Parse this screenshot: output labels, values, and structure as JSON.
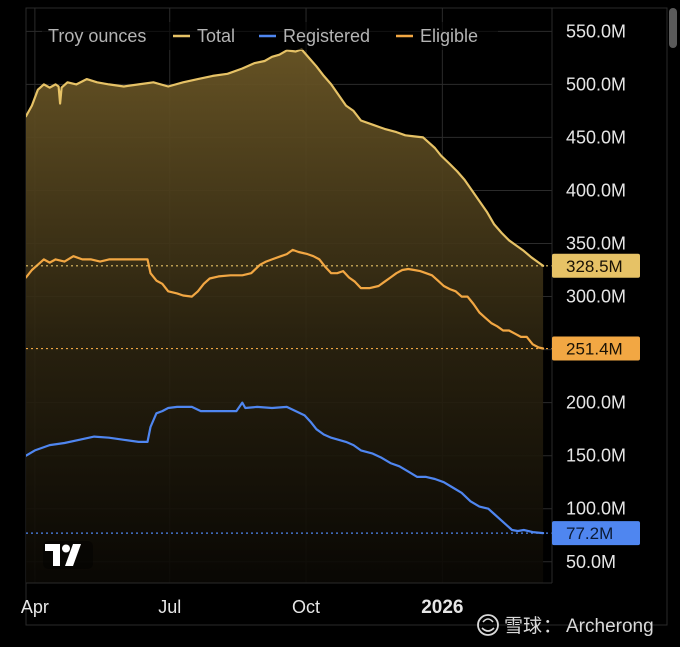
{
  "chart_data": {
    "type": "line",
    "ylabel": "Troy ounces",
    "y_axis_side": "right",
    "y_ticks": [
      50,
      100,
      150,
      200,
      250,
      300,
      350,
      400,
      450,
      500,
      550
    ],
    "y_tick_labels": [
      "50.0M",
      "100.0M",
      "150.0M",
      "200.0M",
      "250.0M",
      "300.0M",
      "350.0M",
      "400.0M",
      "450.0M",
      "500.0M",
      "550.0M"
    ],
    "ylim": [
      30,
      572
    ],
    "x_tick_labels": [
      "Apr",
      "Jul",
      "Oct",
      "2026"
    ],
    "x_tick_bold": [
      false,
      false,
      false,
      true
    ],
    "x_tick_days": [
      0,
      91,
      183,
      275
    ],
    "xlim_days": [
      -6,
      349
    ],
    "grid": true,
    "legend_placement": "top-left",
    "series": [
      {
        "name": "Total",
        "color": "#e6c266",
        "last_label": "328.5M",
        "badge_color": "#e6c266",
        "area": true,
        "points": [
          [
            -6,
            470
          ],
          [
            -2,
            480
          ],
          [
            2,
            495
          ],
          [
            6,
            500
          ],
          [
            10,
            497
          ],
          [
            14,
            500
          ],
          [
            16,
            498
          ],
          [
            17,
            482
          ],
          [
            18,
            497
          ],
          [
            22,
            502
          ],
          [
            28,
            500
          ],
          [
            35,
            505
          ],
          [
            42,
            502
          ],
          [
            50,
            500
          ],
          [
            60,
            498
          ],
          [
            70,
            500
          ],
          [
            80,
            502
          ],
          [
            90,
            498
          ],
          [
            100,
            502
          ],
          [
            110,
            505
          ],
          [
            120,
            508
          ],
          [
            130,
            510
          ],
          [
            140,
            515
          ],
          [
            148,
            520
          ],
          [
            155,
            522
          ],
          [
            160,
            526
          ],
          [
            165,
            528
          ],
          [
            170,
            532
          ],
          [
            176,
            531
          ],
          [
            180,
            533
          ],
          [
            185,
            525
          ],
          [
            190,
            517
          ],
          [
            195,
            508
          ],
          [
            200,
            500
          ],
          [
            205,
            490
          ],
          [
            210,
            480
          ],
          [
            215,
            475
          ],
          [
            220,
            466
          ],
          [
            228,
            462
          ],
          [
            236,
            458
          ],
          [
            244,
            455
          ],
          [
            250,
            452
          ],
          [
            256,
            451
          ],
          [
            262,
            450
          ],
          [
            266,
            445
          ],
          [
            270,
            440
          ],
          [
            274,
            433
          ],
          [
            280,
            425
          ],
          [
            285,
            418
          ],
          [
            290,
            410
          ],
          [
            295,
            400
          ],
          [
            300,
            390
          ],
          [
            305,
            380
          ],
          [
            310,
            368
          ],
          [
            315,
            360
          ],
          [
            320,
            353
          ],
          [
            325,
            348
          ],
          [
            330,
            343
          ],
          [
            335,
            337
          ],
          [
            340,
            332
          ],
          [
            343,
            329
          ]
        ]
      },
      {
        "name": "Registered",
        "color": "#4f86f0",
        "last_label": "77.2M",
        "badge_color": "#4f86f0",
        "area": false,
        "points": [
          [
            -6,
            150
          ],
          [
            0,
            155
          ],
          [
            10,
            160
          ],
          [
            20,
            162
          ],
          [
            30,
            165
          ],
          [
            40,
            168
          ],
          [
            50,
            167
          ],
          [
            60,
            165
          ],
          [
            70,
            163
          ],
          [
            76,
            163
          ],
          [
            78,
            177
          ],
          [
            82,
            190
          ],
          [
            86,
            192
          ],
          [
            90,
            195
          ],
          [
            96,
            196
          ],
          [
            106,
            196
          ],
          [
            112,
            192
          ],
          [
            122,
            192
          ],
          [
            136,
            192
          ],
          [
            140,
            200
          ],
          [
            142,
            195
          ],
          [
            150,
            196
          ],
          [
            160,
            195
          ],
          [
            170,
            196
          ],
          [
            176,
            192
          ],
          [
            182,
            188
          ],
          [
            186,
            182
          ],
          [
            190,
            175
          ],
          [
            195,
            170
          ],
          [
            200,
            167
          ],
          [
            205,
            165
          ],
          [
            210,
            163
          ],
          [
            215,
            160
          ],
          [
            220,
            155
          ],
          [
            228,
            152
          ],
          [
            234,
            148
          ],
          [
            240,
            143
          ],
          [
            246,
            140
          ],
          [
            252,
            135
          ],
          [
            258,
            130
          ],
          [
            264,
            130
          ],
          [
            270,
            128
          ],
          [
            276,
            125
          ],
          [
            282,
            120
          ],
          [
            288,
            115
          ],
          [
            294,
            107
          ],
          [
            300,
            102
          ],
          [
            306,
            100
          ],
          [
            310,
            95
          ],
          [
            314,
            90
          ],
          [
            318,
            85
          ],
          [
            322,
            80
          ],
          [
            326,
            79
          ],
          [
            330,
            80
          ],
          [
            336,
            78
          ],
          [
            343,
            77
          ]
        ]
      },
      {
        "name": "Eligible",
        "color": "#f2a743",
        "last_label": "251.4M",
        "badge_color": "#f2a743",
        "area": false,
        "points": [
          [
            -6,
            318
          ],
          [
            -2,
            325
          ],
          [
            2,
            330
          ],
          [
            6,
            335
          ],
          [
            10,
            332
          ],
          [
            14,
            335
          ],
          [
            20,
            333
          ],
          [
            26,
            338
          ],
          [
            32,
            335
          ],
          [
            38,
            335
          ],
          [
            44,
            333
          ],
          [
            50,
            335
          ],
          [
            60,
            335
          ],
          [
            70,
            335
          ],
          [
            76,
            335
          ],
          [
            78,
            322
          ],
          [
            82,
            315
          ],
          [
            86,
            312
          ],
          [
            90,
            305
          ],
          [
            96,
            303
          ],
          [
            100,
            301
          ],
          [
            106,
            300
          ],
          [
            110,
            305
          ],
          [
            114,
            312
          ],
          [
            118,
            317
          ],
          [
            124,
            319
          ],
          [
            132,
            320
          ],
          [
            140,
            320
          ],
          [
            146,
            322
          ],
          [
            152,
            330
          ],
          [
            156,
            333
          ],
          [
            160,
            335
          ],
          [
            166,
            338
          ],
          [
            170,
            340
          ],
          [
            174,
            344
          ],
          [
            178,
            342
          ],
          [
            184,
            340
          ],
          [
            188,
            338
          ],
          [
            192,
            335
          ],
          [
            196,
            328
          ],
          [
            200,
            322
          ],
          [
            204,
            322
          ],
          [
            208,
            324
          ],
          [
            212,
            318
          ],
          [
            216,
            314
          ],
          [
            220,
            308
          ],
          [
            226,
            308
          ],
          [
            232,
            310
          ],
          [
            236,
            314
          ],
          [
            240,
            318
          ],
          [
            244,
            322
          ],
          [
            248,
            325
          ],
          [
            252,
            326
          ],
          [
            256,
            325
          ],
          [
            260,
            324
          ],
          [
            264,
            322
          ],
          [
            268,
            320
          ],
          [
            272,
            315
          ],
          [
            276,
            310
          ],
          [
            280,
            307
          ],
          [
            284,
            305
          ],
          [
            288,
            300
          ],
          [
            292,
            300
          ],
          [
            296,
            293
          ],
          [
            300,
            285
          ],
          [
            304,
            280
          ],
          [
            308,
            275
          ],
          [
            312,
            272
          ],
          [
            316,
            268
          ],
          [
            320,
            268
          ],
          [
            324,
            265
          ],
          [
            328,
            262
          ],
          [
            332,
            262
          ],
          [
            336,
            255
          ],
          [
            340,
            252
          ],
          [
            343,
            251
          ]
        ]
      }
    ]
  },
  "watermark": {
    "icon": "snowball-logo-icon",
    "site": "雪球",
    "separator": "：",
    "author": "Archerong"
  },
  "logo": {
    "icon": "tradingview-logo-icon"
  }
}
